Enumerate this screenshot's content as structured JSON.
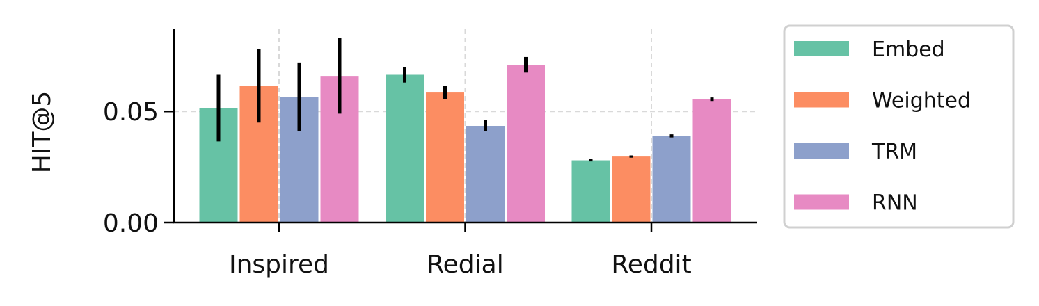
{
  "chart_data": {
    "type": "bar",
    "ylabel": "HIT@5",
    "categories": [
      "Inspired",
      "Redial",
      "Reddit"
    ],
    "ylim": [
      0,
      0.087
    ],
    "yticks": [
      0.0,
      0.05
    ],
    "ytick_labels": [
      "0.00",
      "0.05"
    ],
    "grid": "dashed on x and y major ticks",
    "legend_position": "right, outside plot",
    "series": [
      {
        "name": "Embed",
        "color": "#66c2a5",
        "values": [
          0.0515,
          0.0665,
          0.028
        ],
        "errors": [
          0.015,
          0.0035,
          0.0005
        ]
      },
      {
        "name": "Weighted",
        "color": "#fc8d62",
        "values": [
          0.0615,
          0.0585,
          0.0297
        ],
        "errors": [
          0.0165,
          0.003,
          0.0005
        ]
      },
      {
        "name": "TRM",
        "color": "#8da0cb",
        "values": [
          0.0565,
          0.0435,
          0.039
        ],
        "errors": [
          0.0155,
          0.0025,
          0.0007
        ]
      },
      {
        "name": "RNN",
        "color": "#e78ac3",
        "values": [
          0.066,
          0.071,
          0.0555
        ],
        "errors": [
          0.017,
          0.0035,
          0.0008
        ]
      }
    ]
  }
}
